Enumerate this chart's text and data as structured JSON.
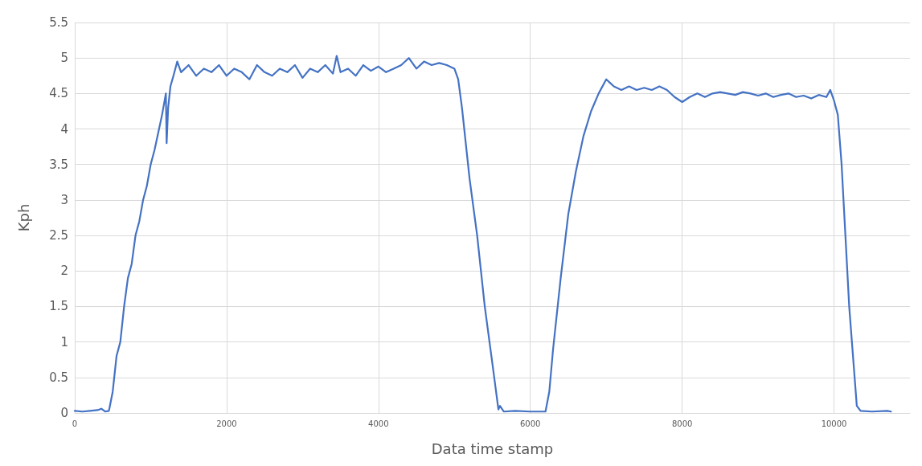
{
  "chart_data": {
    "type": "line",
    "xlabel": "Data time stamp",
    "ylabel": "Kph",
    "xlim": [
      0,
      11000
    ],
    "xticks": [
      0,
      2000,
      4000,
      6000,
      8000,
      10000
    ],
    "ylim": [
      0,
      5.5
    ],
    "yticks": [
      0,
      0.5,
      1,
      1.5,
      2,
      2.5,
      3,
      3.5,
      4,
      4.5,
      5,
      5.5
    ],
    "grid": true,
    "marker": "none",
    "line_style": "solid",
    "series": [
      {
        "color": "#4472c4",
        "x": [
          0,
          100,
          200,
          300,
          350,
          400,
          450,
          500,
          550,
          600,
          650,
          700,
          750,
          800,
          850,
          900,
          950,
          1000,
          1050,
          1100,
          1150,
          1200,
          1210,
          1230,
          1260,
          1300,
          1350,
          1400,
          1500,
          1600,
          1700,
          1800,
          1900,
          2000,
          2100,
          2200,
          2300,
          2400,
          2500,
          2600,
          2700,
          2800,
          2900,
          3000,
          3100,
          3200,
          3300,
          3400,
          3450,
          3500,
          3600,
          3700,
          3800,
          3900,
          4000,
          4100,
          4200,
          4300,
          4400,
          4500,
          4600,
          4700,
          4800,
          4900,
          5000,
          5050,
          5100,
          5200,
          5300,
          5400,
          5500,
          5580,
          5600,
          5650,
          5800,
          6000,
          6200,
          6250,
          6300,
          6400,
          6500,
          6600,
          6700,
          6800,
          6900,
          7000,
          7050,
          7100,
          7200,
          7300,
          7400,
          7500,
          7600,
          7700,
          7800,
          7900,
          8000,
          8100,
          8200,
          8300,
          8400,
          8500,
          8600,
          8700,
          8800,
          8900,
          9000,
          9100,
          9200,
          9300,
          9400,
          9500,
          9600,
          9700,
          9800,
          9900,
          9950,
          10000,
          10050,
          10100,
          10150,
          10200,
          10250,
          10300,
          10350,
          10500,
          10700,
          10750
        ],
        "values": [
          0.03,
          0.02,
          0.03,
          0.04,
          0.06,
          0.02,
          0.03,
          0.3,
          0.8,
          1.0,
          1.5,
          1.9,
          2.1,
          2.5,
          2.7,
          3.0,
          3.2,
          3.5,
          3.7,
          3.95,
          4.2,
          4.5,
          3.8,
          4.3,
          4.6,
          4.75,
          4.95,
          4.8,
          4.9,
          4.75,
          4.85,
          4.8,
          4.9,
          4.75,
          4.85,
          4.8,
          4.7,
          4.9,
          4.8,
          4.75,
          4.85,
          4.8,
          4.9,
          4.72,
          4.85,
          4.8,
          4.9,
          4.78,
          5.03,
          4.8,
          4.85,
          4.75,
          4.9,
          4.82,
          4.88,
          4.8,
          4.85,
          4.9,
          5.0,
          4.85,
          4.95,
          4.9,
          4.93,
          4.9,
          4.85,
          4.7,
          4.3,
          3.3,
          2.5,
          1.5,
          0.7,
          0.05,
          0.1,
          0.02,
          0.03,
          0.02,
          0.02,
          0.3,
          0.9,
          1.9,
          2.8,
          3.4,
          3.9,
          4.25,
          4.5,
          4.7,
          4.65,
          4.6,
          4.55,
          4.6,
          4.55,
          4.58,
          4.55,
          4.6,
          4.55,
          4.45,
          4.38,
          4.45,
          4.5,
          4.45,
          4.5,
          4.52,
          4.5,
          4.48,
          4.52,
          4.5,
          4.47,
          4.5,
          4.45,
          4.48,
          4.5,
          4.45,
          4.47,
          4.43,
          4.48,
          4.45,
          4.55,
          4.4,
          4.2,
          3.5,
          2.5,
          1.5,
          0.8,
          0.1,
          0.03,
          0.02,
          0.03,
          0.02
        ]
      }
    ]
  }
}
